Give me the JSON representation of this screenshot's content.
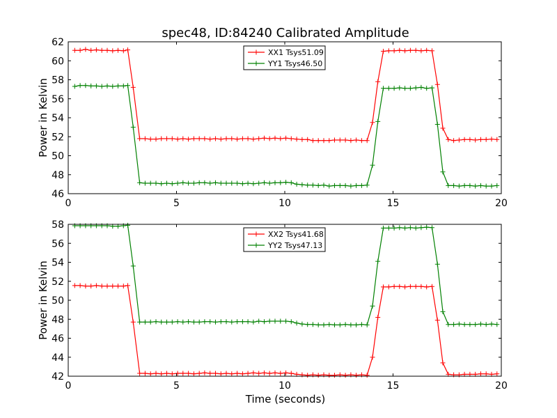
{
  "figure": {
    "title": "spec48, ID:84240 Calibrated Amplitude",
    "xlabel": "Time (seconds)"
  },
  "chart_data": [
    {
      "type": "line",
      "ylabel": "Power in Kelvin",
      "xlim": [
        0,
        20
      ],
      "ylim": [
        46,
        62
      ],
      "xticks": [
        "0",
        "5",
        "10",
        "15",
        "20"
      ],
      "yticks": [
        "46",
        "48",
        "50",
        "52",
        "54",
        "56",
        "58",
        "60",
        "62"
      ],
      "legend_position": "top-center",
      "grid": false,
      "x": [
        0.3,
        0.55,
        0.8,
        1.05,
        1.3,
        1.55,
        1.8,
        2.05,
        2.3,
        2.55,
        2.75,
        3.0,
        3.3,
        3.55,
        3.8,
        4.05,
        4.3,
        4.55,
        4.8,
        5.05,
        5.3,
        5.55,
        5.8,
        6.05,
        6.3,
        6.55,
        6.8,
        7.05,
        7.3,
        7.55,
        7.8,
        8.05,
        8.3,
        8.55,
        8.8,
        9.05,
        9.3,
        9.55,
        9.8,
        10.05,
        10.3,
        10.55,
        10.8,
        11.05,
        11.3,
        11.55,
        11.8,
        12.05,
        12.3,
        12.55,
        12.8,
        13.05,
        13.3,
        13.55,
        13.8,
        14.05,
        14.3,
        14.55,
        14.8,
        15.05,
        15.3,
        15.55,
        15.8,
        16.05,
        16.3,
        16.55,
        16.8,
        17.05,
        17.3,
        17.55,
        17.8,
        18.05,
        18.3,
        18.55,
        18.8,
        19.05,
        19.3,
        19.55,
        19.8
      ],
      "series": [
        {
          "name": "XX1 Tsys51.09",
          "color": "#ff0000",
          "values": [
            61.1,
            61.1,
            61.2,
            61.1,
            61.15,
            61.1,
            61.1,
            61.05,
            61.1,
            61.05,
            61.15,
            57.2,
            51.8,
            51.8,
            51.75,
            51.75,
            51.8,
            51.8,
            51.8,
            51.75,
            51.8,
            51.75,
            51.8,
            51.8,
            51.8,
            51.75,
            51.8,
            51.75,
            51.8,
            51.8,
            51.75,
            51.8,
            51.8,
            51.75,
            51.8,
            51.85,
            51.8,
            51.85,
            51.8,
            51.85,
            51.8,
            51.75,
            51.7,
            51.7,
            51.6,
            51.6,
            51.6,
            51.6,
            51.65,
            51.65,
            51.65,
            51.6,
            51.65,
            51.6,
            51.6,
            53.5,
            57.8,
            61.0,
            61.05,
            61.05,
            61.1,
            61.05,
            61.1,
            61.1,
            61.05,
            61.1,
            61.05,
            57.5,
            52.9,
            51.7,
            51.6,
            51.65,
            51.7,
            51.7,
            51.65,
            51.7,
            51.7,
            51.75,
            51.7
          ]
        },
        {
          "name": "YY1 Tsys46.50",
          "color": "#008000",
          "values": [
            57.3,
            57.4,
            57.4,
            57.35,
            57.35,
            57.3,
            57.35,
            57.3,
            57.35,
            57.35,
            57.4,
            53.0,
            47.15,
            47.1,
            47.1,
            47.1,
            47.05,
            47.1,
            47.05,
            47.1,
            47.15,
            47.1,
            47.1,
            47.15,
            47.15,
            47.1,
            47.15,
            47.1,
            47.1,
            47.1,
            47.1,
            47.05,
            47.1,
            47.05,
            47.1,
            47.15,
            47.1,
            47.15,
            47.15,
            47.2,
            47.15,
            47.0,
            46.95,
            46.9,
            46.9,
            46.85,
            46.9,
            46.8,
            46.85,
            46.85,
            46.85,
            46.8,
            46.85,
            46.85,
            46.9,
            49.0,
            53.6,
            57.1,
            57.1,
            57.1,
            57.15,
            57.1,
            57.1,
            57.15,
            57.2,
            57.1,
            57.15,
            53.3,
            48.3,
            46.85,
            46.85,
            46.8,
            46.85,
            46.85,
            46.8,
            46.85,
            46.8,
            46.8,
            46.85
          ]
        }
      ]
    },
    {
      "type": "line",
      "ylabel": "Power in Kelvin",
      "xlim": [
        0,
        20
      ],
      "ylim": [
        42,
        58
      ],
      "xticks": [
        "0",
        "5",
        "10",
        "15",
        "20"
      ],
      "yticks": [
        "42",
        "44",
        "46",
        "48",
        "50",
        "52",
        "54",
        "56",
        "58"
      ],
      "legend_position": "top-center",
      "grid": false,
      "x": [
        0.3,
        0.55,
        0.8,
        1.05,
        1.3,
        1.55,
        1.8,
        2.05,
        2.3,
        2.55,
        2.75,
        3.0,
        3.3,
        3.55,
        3.8,
        4.05,
        4.3,
        4.55,
        4.8,
        5.05,
        5.3,
        5.55,
        5.8,
        6.05,
        6.3,
        6.55,
        6.8,
        7.05,
        7.3,
        7.55,
        7.8,
        8.05,
        8.3,
        8.55,
        8.8,
        9.05,
        9.3,
        9.55,
        9.8,
        10.05,
        10.3,
        10.55,
        10.8,
        11.05,
        11.3,
        11.55,
        11.8,
        12.05,
        12.3,
        12.55,
        12.8,
        13.05,
        13.3,
        13.55,
        13.8,
        14.05,
        14.3,
        14.55,
        14.8,
        15.05,
        15.3,
        15.55,
        15.8,
        16.05,
        16.3,
        16.55,
        16.8,
        17.05,
        17.3,
        17.55,
        17.8,
        18.05,
        18.3,
        18.55,
        18.8,
        19.05,
        19.3,
        19.55,
        19.8
      ],
      "series": [
        {
          "name": "XX2 Tsys41.68",
          "color": "#ff0000",
          "values": [
            51.55,
            51.55,
            51.5,
            51.5,
            51.55,
            51.5,
            51.5,
            51.5,
            51.5,
            51.5,
            51.55,
            47.7,
            42.3,
            42.3,
            42.25,
            42.3,
            42.25,
            42.3,
            42.25,
            42.3,
            42.3,
            42.3,
            42.25,
            42.3,
            42.35,
            42.3,
            42.3,
            42.25,
            42.3,
            42.25,
            42.3,
            42.25,
            42.3,
            42.35,
            42.3,
            42.35,
            42.3,
            42.35,
            42.3,
            42.35,
            42.3,
            42.2,
            42.15,
            42.1,
            42.15,
            42.1,
            42.15,
            42.1,
            42.1,
            42.15,
            42.1,
            42.15,
            42.1,
            42.15,
            42.1,
            44.0,
            48.2,
            51.4,
            51.4,
            51.45,
            51.45,
            51.4,
            51.45,
            51.45,
            51.45,
            51.4,
            51.45,
            47.9,
            43.4,
            42.2,
            42.15,
            42.15,
            42.2,
            42.2,
            42.2,
            42.25,
            42.25,
            42.2,
            42.25
          ]
        },
        {
          "name": "YY2 Tsys47.13",
          "color": "#008000",
          "values": [
            57.85,
            57.85,
            57.85,
            57.85,
            57.85,
            57.85,
            57.85,
            57.8,
            57.8,
            57.85,
            57.9,
            53.6,
            47.7,
            47.7,
            47.7,
            47.75,
            47.7,
            47.7,
            47.7,
            47.75,
            47.7,
            47.75,
            47.7,
            47.7,
            47.75,
            47.75,
            47.7,
            47.75,
            47.75,
            47.7,
            47.75,
            47.75,
            47.75,
            47.7,
            47.8,
            47.75,
            47.8,
            47.8,
            47.8,
            47.8,
            47.75,
            47.6,
            47.5,
            47.45,
            47.45,
            47.4,
            47.4,
            47.45,
            47.4,
            47.4,
            47.45,
            47.4,
            47.4,
            47.45,
            47.4,
            49.4,
            54.1,
            57.6,
            57.6,
            57.6,
            57.65,
            57.6,
            57.65,
            57.6,
            57.65,
            57.7,
            57.65,
            53.8,
            48.8,
            47.45,
            47.45,
            47.5,
            47.45,
            47.45,
            47.45,
            47.5,
            47.45,
            47.5,
            47.45
          ]
        }
      ]
    }
  ]
}
